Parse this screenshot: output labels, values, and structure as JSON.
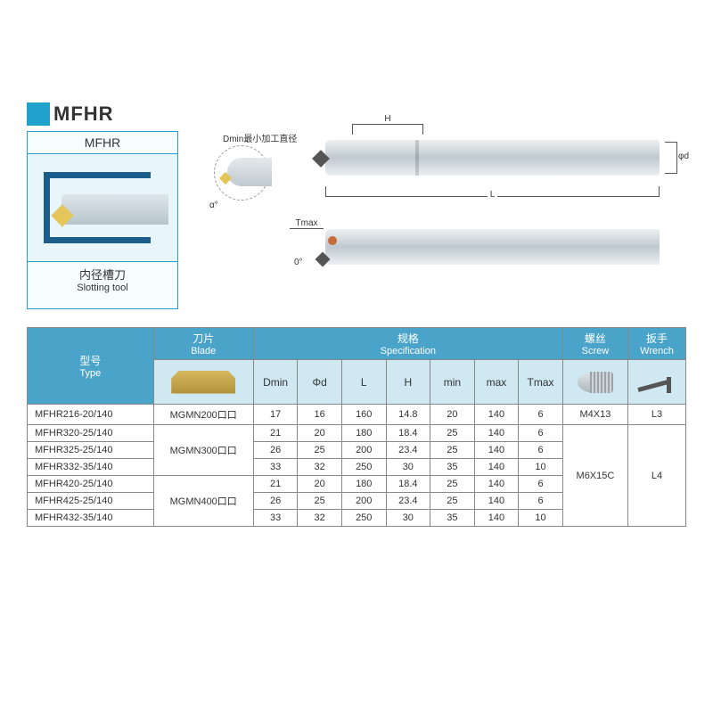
{
  "title": "MFHR",
  "schematic": {
    "header": "MFHR",
    "footer_cn": "内径槽刀",
    "footer_en": "Slotting tool"
  },
  "drawings": {
    "dmin_label": "Dmin最小加工直径",
    "alpha": "α°",
    "H": "H",
    "L": "L",
    "phi_d": "φd",
    "tmax": "Tmax",
    "zero": "0°"
  },
  "table": {
    "headers": {
      "type_cn": "型号",
      "type_en": "Type",
      "blade_cn": "刀片",
      "blade_en": "Blade",
      "spec_cn": "规格",
      "spec_en": "Specification",
      "screw_cn": "螺丝",
      "screw_en": "Screw",
      "wrench_cn": "扳手",
      "wrench_en": "Wrench"
    },
    "spec_cols": [
      "Dmin",
      "Φd",
      "L",
      "H",
      "min",
      "max",
      "Tmax"
    ],
    "rows": [
      {
        "type": "MFHR216-20/140",
        "blade": "MGMN200口口",
        "blade_span": 1,
        "spec": [
          "17",
          "16",
          "160",
          "14.8",
          "20",
          "140",
          "6"
        ],
        "screw": "M4X13",
        "screw_span": 1,
        "wrench": "L3",
        "wrench_span": 1
      },
      {
        "type": "MFHR320-25/140",
        "blade": "MGMN300口口",
        "blade_span": 3,
        "spec": [
          "21",
          "20",
          "180",
          "18.4",
          "25",
          "140",
          "6"
        ],
        "screw": "M6X15C",
        "screw_span": 6,
        "wrench": "L4",
        "wrench_span": 6
      },
      {
        "type": "MFHR325-25/140",
        "spec": [
          "26",
          "25",
          "200",
          "23.4",
          "25",
          "140",
          "6"
        ]
      },
      {
        "type": "MFHR332-35/140",
        "spec": [
          "33",
          "32",
          "250",
          "30",
          "35",
          "140",
          "10"
        ]
      },
      {
        "type": "MFHR420-25/140",
        "blade": "MGMN400口口",
        "blade_span": 3,
        "spec": [
          "21",
          "20",
          "180",
          "18.4",
          "25",
          "140",
          "6"
        ]
      },
      {
        "type": "MFHR425-25/140",
        "spec": [
          "26",
          "25",
          "200",
          "23.4",
          "25",
          "140",
          "6"
        ]
      },
      {
        "type": "MFHR432-35/140",
        "spec": [
          "33",
          "32",
          "250",
          "30",
          "35",
          "140",
          "10"
        ]
      }
    ],
    "col_widths": {
      "type": "120px",
      "blade": "95px",
      "spec": "42px",
      "screw": "62px",
      "wrench": "55px"
    }
  },
  "colors": {
    "accent": "#1fa3cc",
    "header_bg": "#4aa3c9",
    "subhead_bg": "#cfe8f2",
    "border": "#888888"
  }
}
